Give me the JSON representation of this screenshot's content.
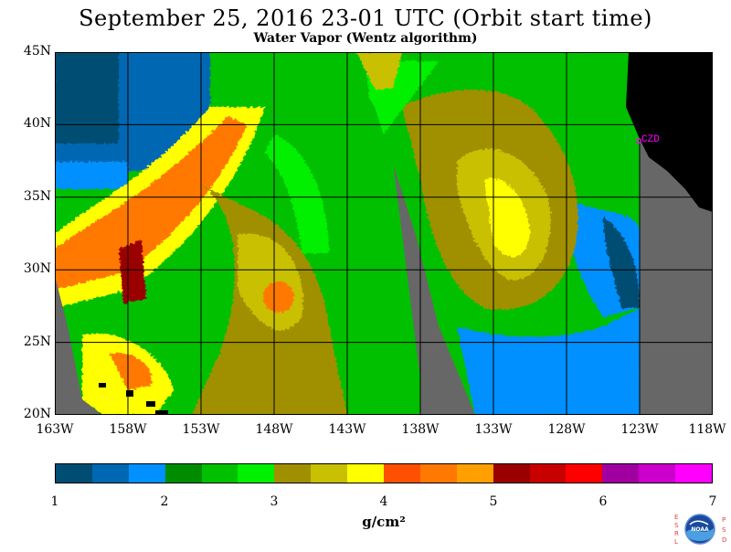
{
  "title": "September 25, 2016  23-01 UTC  (Orbit start time)",
  "subtitle": "Water Vapor (Wentz algorithm)",
  "map": {
    "lat_labels": [
      "45N",
      "40N",
      "35N",
      "30N",
      "25N",
      "20N"
    ],
    "lon_labels": [
      "163W",
      "158W",
      "153W",
      "148W",
      "143W",
      "138W",
      "133W",
      "128W",
      "123W",
      "118W"
    ],
    "station_label": "CZD",
    "colors": {
      "no_data": "#676767",
      "land": "#000000",
      "grid": "#000000",
      "station": "#ff00ff"
    }
  },
  "colorbar": {
    "colors": [
      "#004d73",
      "#0068b3",
      "#0090ff",
      "#008c00",
      "#00c000",
      "#00f000",
      "#a09000",
      "#c8c000",
      "#ffff00",
      "#ff5000",
      "#ff7800",
      "#ffa000",
      "#9b0000",
      "#c80000",
      "#ff0000",
      "#a000a0",
      "#cc00cc",
      "#ff00ff"
    ],
    "ticks": [
      "1",
      "2",
      "3",
      "4",
      "5",
      "6",
      "7"
    ],
    "unit": "g/cm²"
  },
  "logo": {
    "left_letters": "ESRL",
    "right_letters": "PSD",
    "text": "NOAA"
  }
}
